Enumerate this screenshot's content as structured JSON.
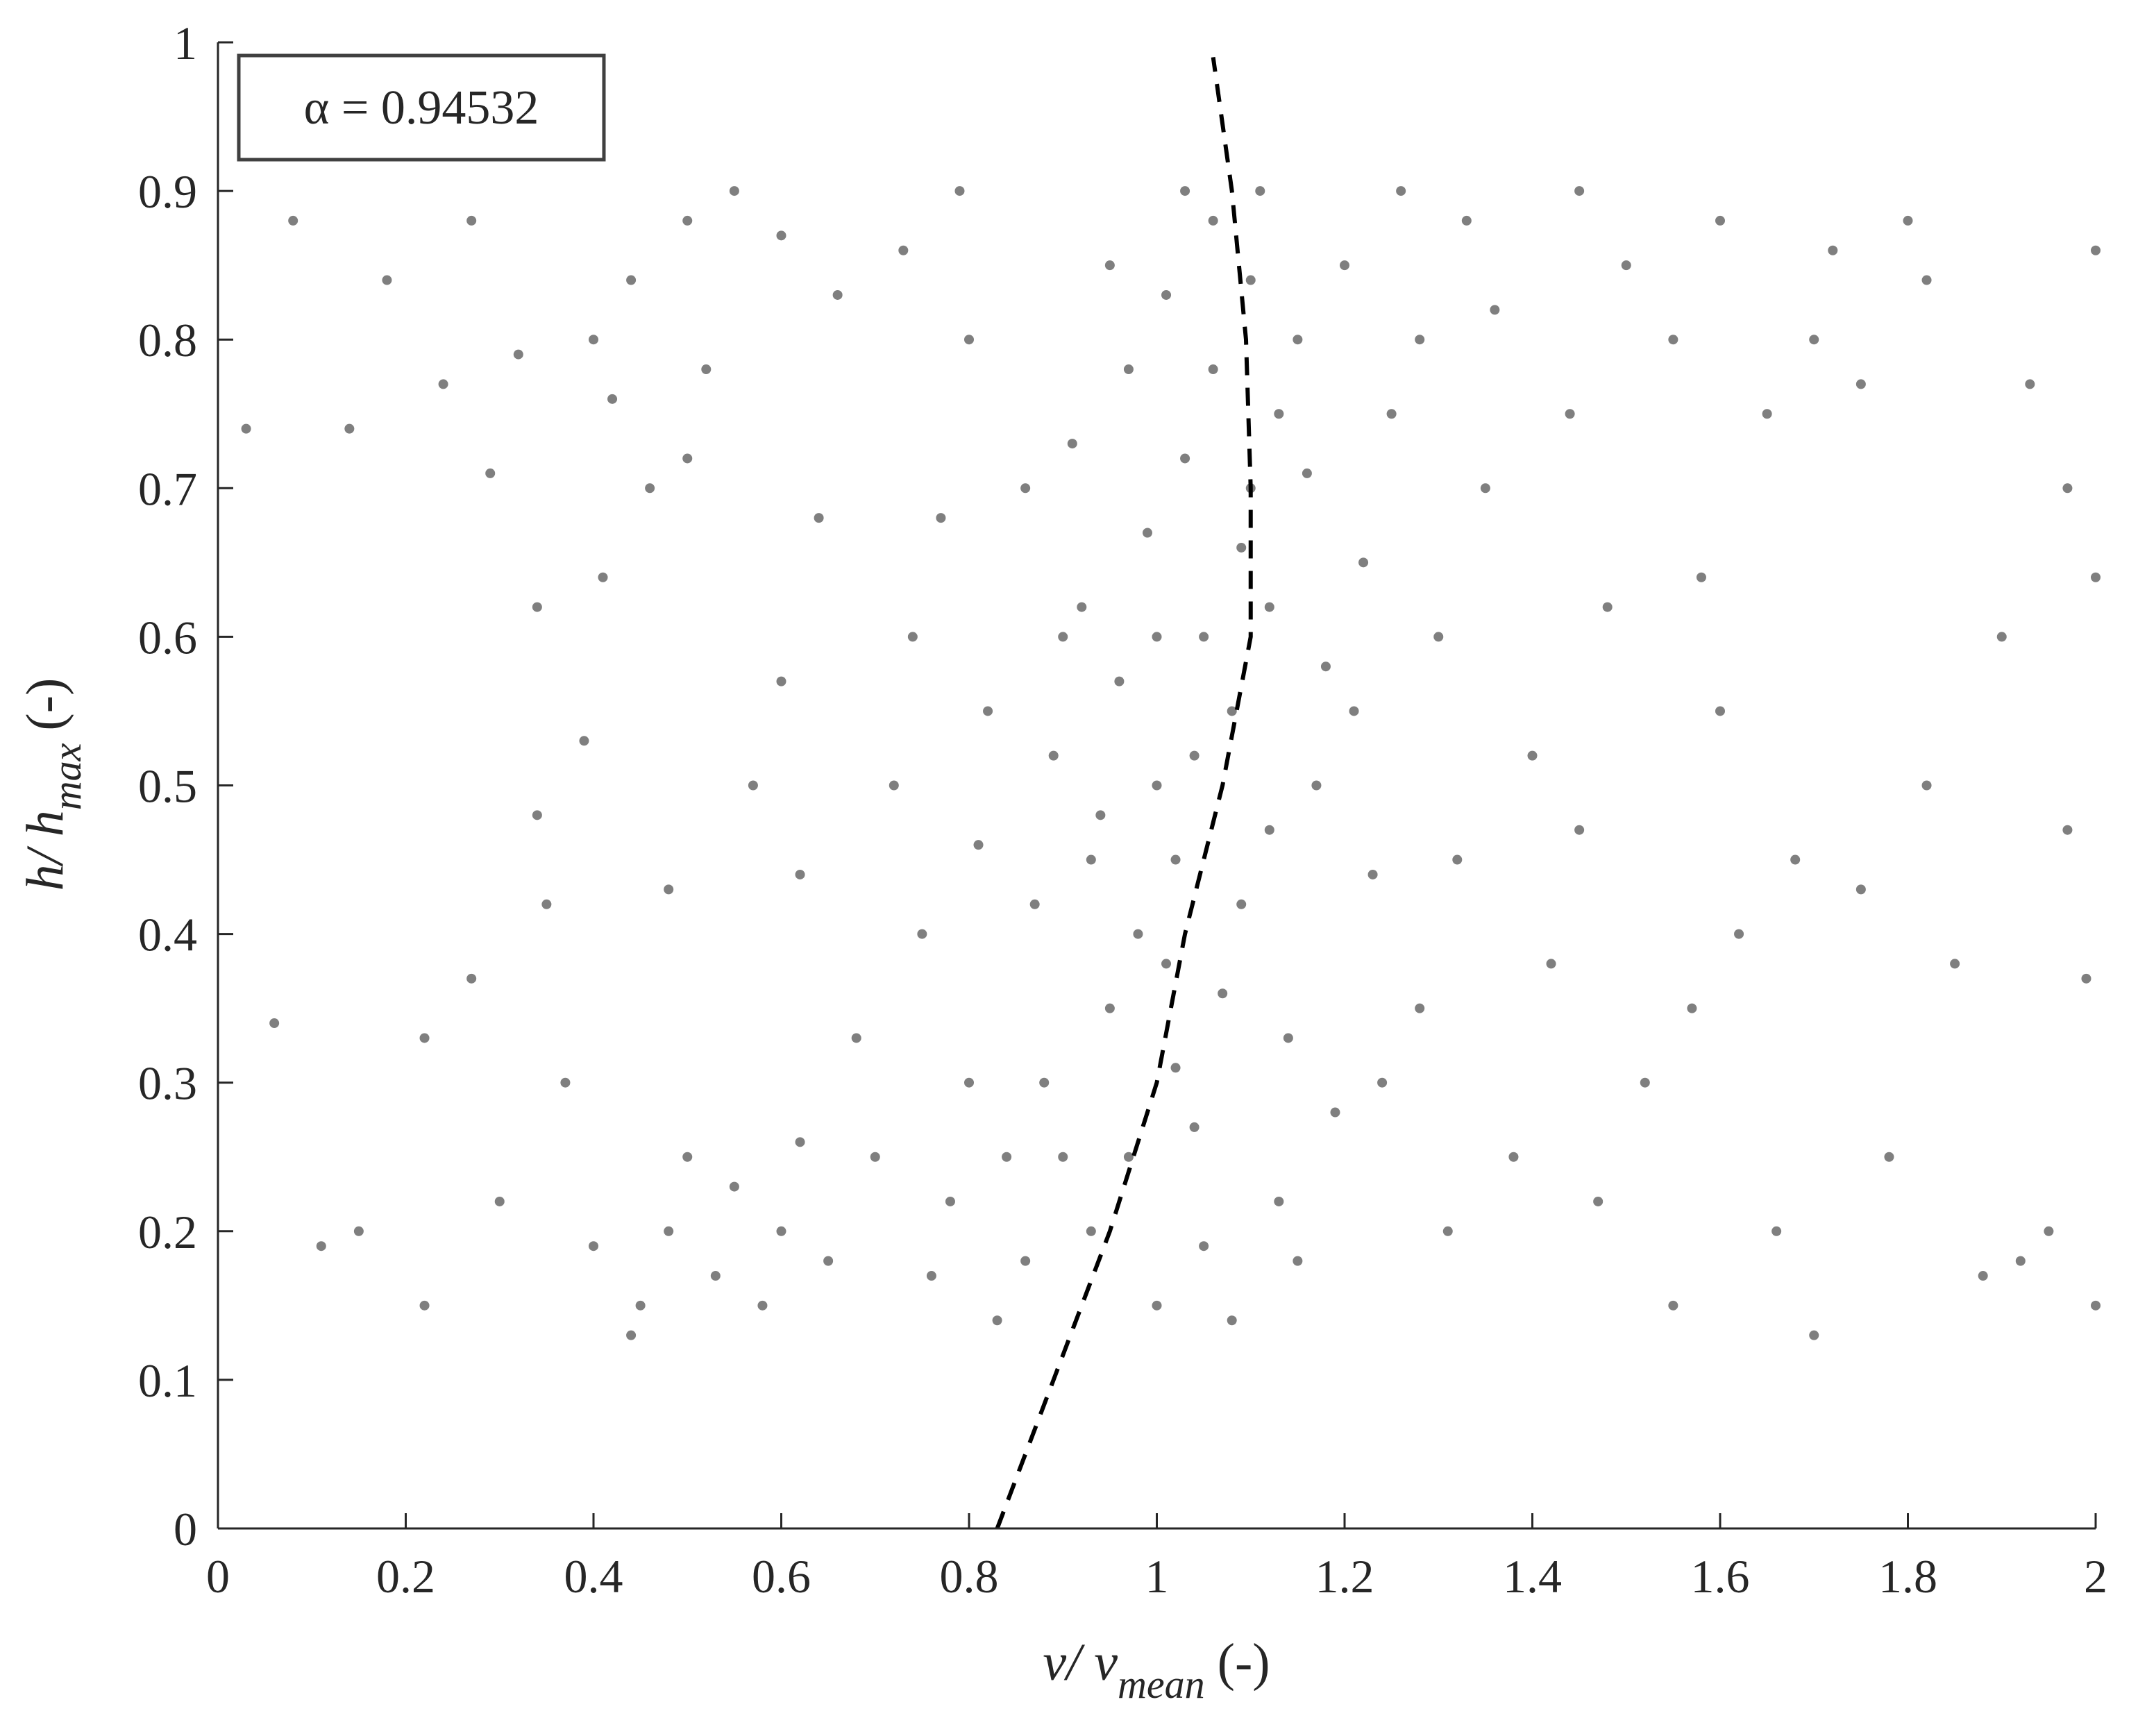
{
  "chart_data": {
    "type": "scatter",
    "annotation": "α = 0.94532",
    "xlabel": {
      "main": "v/ v",
      "sub": "mean",
      "unit": "(-)"
    },
    "ylabel": {
      "main": "h/ h",
      "sub": "max",
      "unit": "(-)"
    },
    "color": "#7f7f7f",
    "x": [
      1.0,
      1.05,
      1.02,
      0.95,
      1.1,
      1.15,
      0.9,
      1.08,
      1.12,
      0.98,
      1.03,
      1.2,
      0.88,
      1.06,
      0.93,
      1.17,
      1.0,
      1.22,
      0.97,
      1.09,
      1.14,
      0.86,
      1.04,
      1.25,
      0.92,
      1.01,
      1.11,
      0.94,
      1.18,
      0.99,
      1.07,
      1.23,
      0.89,
      1.13,
      1.05,
      0.96,
      1.16,
      1.02,
      0.91,
      1.28,
      1.03,
      0.87,
      1.19,
      1.08,
      0.95,
      1.12,
      1.0,
      1.06,
      0.84,
      1.21,
      1.3,
      1.32,
      1.35,
      1.28,
      1.38,
      1.4,
      1.33,
      1.36,
      1.42,
      1.31,
      0.8,
      0.78,
      0.75,
      0.82,
      0.77,
      0.8,
      0.73,
      0.76,
      0.7,
      0.72,
      0.68,
      0.83,
      0.79,
      0.74,
      0.81,
      0.6,
      0.62,
      0.58,
      0.55,
      0.65,
      0.5,
      0.48,
      0.45,
      0.44,
      0.53,
      0.57,
      0.6,
      0.62,
      0.64,
      0.66,
      0.6,
      0.55,
      0.5,
      0.52,
      0.5,
      0.44,
      0.42,
      0.4,
      0.46,
      0.48,
      1.45,
      1.5,
      1.48,
      1.45,
      1.52,
      1.47,
      1.55,
      1.44,
      1.55,
      1.58,
      1.6,
      1.62,
      1.65,
      1.7,
      1.72,
      1.75,
      1.8,
      1.82,
      1.68,
      1.66,
      1.7,
      1.75,
      1.78,
      1.82,
      1.85,
      1.9,
      1.93,
      1.97,
      1.95,
      1.92,
      1.97,
      2,
      2,
      1.99,
      2,
      1.88,
      1.6,
      1.57,
      0.03,
      0.06,
      0.08,
      0.11,
      0.14,
      0.15,
      0.18,
      0.22,
      0.24,
      0.27,
      0.29,
      0.3,
      0.32,
      0.34,
      0.35,
      0.37,
      0.39,
      0.4,
      0.34,
      0.22,
      0.27,
      0.41,
      0.97,
      1.01,
      1.04,
      1.09,
      1.13,
      0.93,
      1.24,
      1.15,
      0.9,
      1.1,
      1.26,
      0.86
    ],
    "values": [
      0.5,
      0.6,
      0.45,
      0.35,
      0.7,
      0.8,
      0.25,
      0.55,
      0.62,
      0.4,
      0.72,
      0.85,
      0.3,
      0.88,
      0.2,
      0.5,
      0.15,
      0.65,
      0.78,
      0.42,
      0.33,
      0.18,
      0.27,
      0.75,
      0.62,
      0.83,
      0.9,
      0.48,
      0.58,
      0.67,
      0.36,
      0.44,
      0.52,
      0.22,
      0.19,
      0.57,
      0.71,
      0.31,
      0.73,
      0.8,
      0.9,
      0.42,
      0.28,
      0.14,
      0.85,
      0.47,
      0.6,
      0.78,
      0.25,
      0.55,
      0.6,
      0.45,
      0.7,
      0.35,
      0.25,
      0.52,
      0.88,
      0.82,
      0.38,
      0.2,
      0.3,
      0.22,
      0.4,
      0.55,
      0.68,
      0.8,
      0.86,
      0.17,
      0.25,
      0.5,
      0.33,
      0.14,
      0.9,
      0.6,
      0.46,
      0.2,
      0.26,
      0.15,
      0.23,
      0.18,
      0.25,
      0.2,
      0.15,
      0.13,
      0.17,
      0.5,
      0.57,
      0.44,
      0.68,
      0.83,
      0.87,
      0.9,
      0.88,
      0.78,
      0.72,
      0.84,
      0.76,
      0.8,
      0.7,
      0.43,
      0.9,
      0.85,
      0.62,
      0.47,
      0.3,
      0.22,
      0.15,
      0.75,
      0.8,
      0.64,
      0.88,
      0.4,
      0.75,
      0.8,
      0.86,
      0.77,
      0.88,
      0.84,
      0.45,
      0.2,
      0.13,
      0.43,
      0.25,
      0.5,
      0.38,
      0.6,
      0.77,
      0.7,
      0.2,
      0.18,
      0.47,
      0.86,
      0.64,
      0.37,
      0.15,
      0.17,
      0.55,
      0.35,
      0.74,
      0.34,
      0.88,
      0.19,
      0.74,
      0.2,
      0.84,
      0.33,
      0.77,
      0.37,
      0.71,
      0.22,
      0.79,
      0.62,
      0.42,
      0.3,
      0.53,
      0.19,
      0.48,
      0.15,
      0.88,
      0.64,
      0.25,
      0.38,
      0.52,
      0.66,
      0.75,
      0.45,
      0.3,
      0.18,
      0.6,
      0.84,
      0.9,
      0.7
    ],
    "fit": {
      "color": "#000000",
      "dashed": true,
      "x": [
        0.83,
        0.89,
        0.95,
        1.0,
        1.03,
        1.07,
        1.1,
        1.1,
        1.095,
        1.08,
        1.06
      ],
      "values": [
        0,
        0.1,
        0.2,
        0.3,
        0.4,
        0.5,
        0.6,
        0.7,
        0.8,
        0.9,
        0.99
      ]
    },
    "xlim": [
      0,
      2
    ],
    "ylim": [
      0,
      1
    ],
    "xticks": [
      0,
      0.2,
      0.4,
      0.6,
      0.8,
      1,
      1.2,
      1.4,
      1.6,
      1.8,
      2
    ],
    "yticks": [
      0,
      0.1,
      0.2,
      0.3,
      0.4,
      0.5,
      0.6,
      0.7,
      0.8,
      0.9,
      1
    ]
  }
}
